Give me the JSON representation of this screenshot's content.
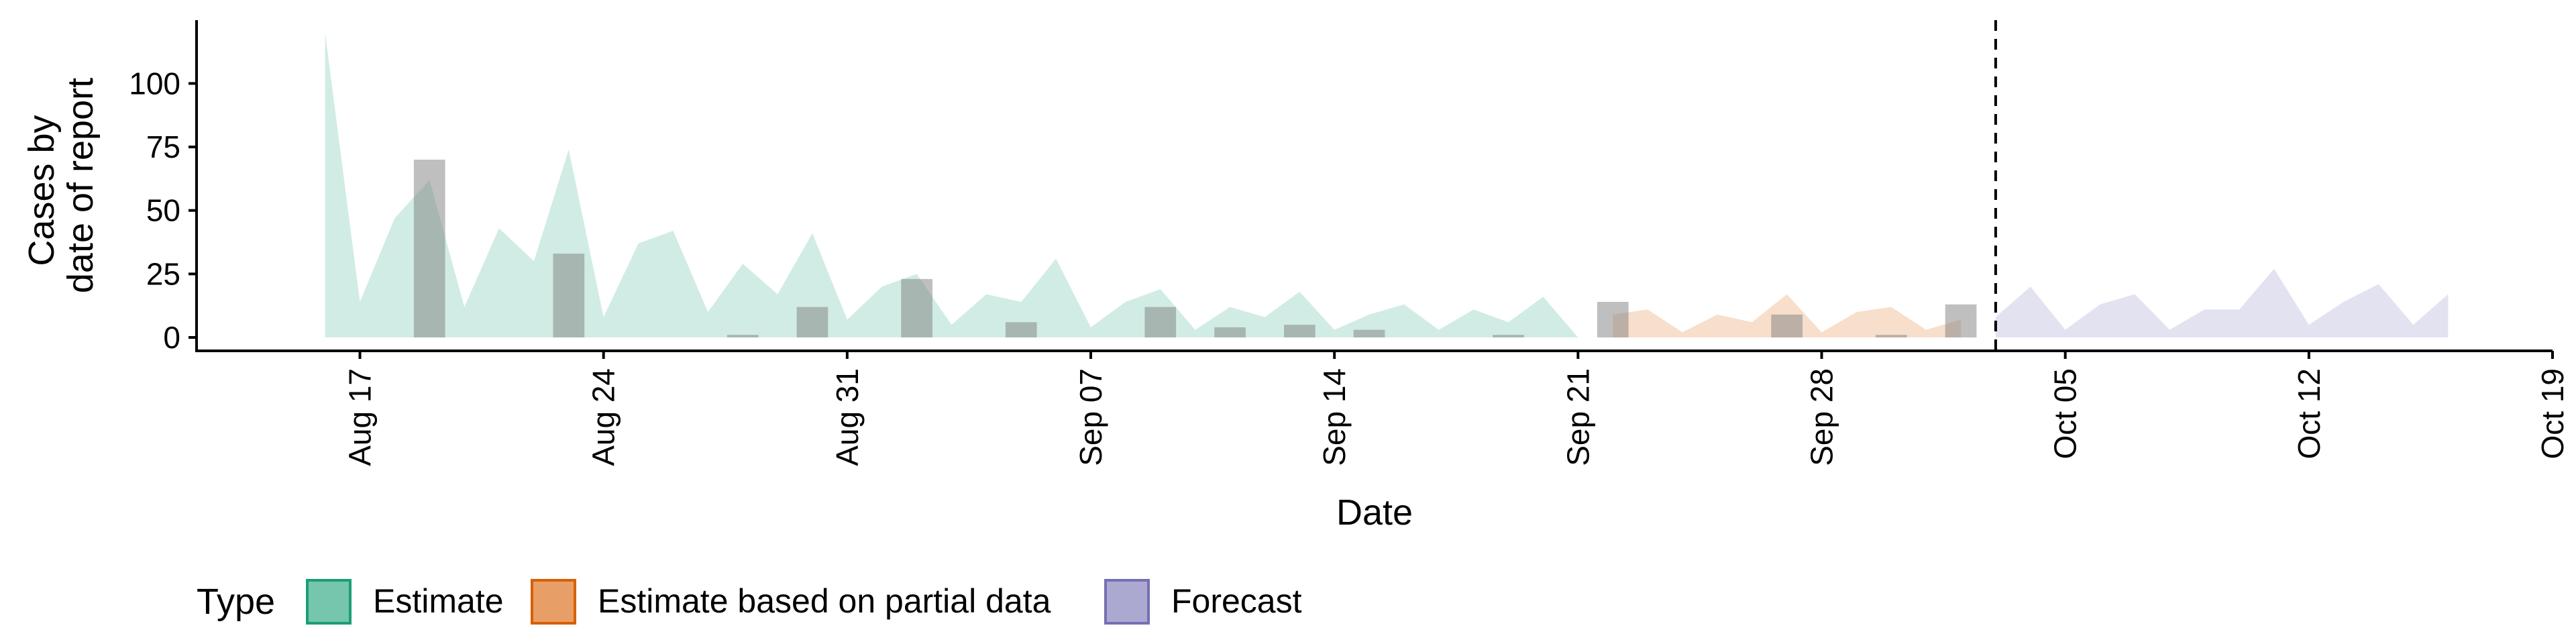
{
  "chart_data": {
    "type": "area",
    "xlabel": "Date",
    "ylabel": [
      "Cases by",
      "date of report"
    ],
    "ylim": [
      0,
      120
    ],
    "xlim": [
      "2020-08-13",
      "2020-10-19"
    ],
    "y_ticks": [
      0,
      25,
      50,
      75,
      100
    ],
    "x_ticks": [
      {
        "date": "2020-08-17",
        "label": "Aug 17"
      },
      {
        "date": "2020-08-24",
        "label": "Aug 24"
      },
      {
        "date": "2020-08-31",
        "label": "Aug 31"
      },
      {
        "date": "2020-09-07",
        "label": "Sep 07"
      },
      {
        "date": "2020-09-14",
        "label": "Sep 14"
      },
      {
        "date": "2020-09-21",
        "label": "Sep 21"
      },
      {
        "date": "2020-09-28",
        "label": "Sep 28"
      },
      {
        "date": "2020-10-05",
        "label": "Oct 05"
      },
      {
        "date": "2020-10-12",
        "label": "Oct 12"
      },
      {
        "date": "2020-10-19",
        "label": "Oct 19"
      }
    ],
    "grid": false,
    "legend_position": "bottom-left",
    "legend_title": "Type",
    "reference_line": {
      "date": "2020-10-03",
      "style": "dashed",
      "color": "#000000"
    },
    "series": [
      {
        "name": "Estimate",
        "fill": "#1b9e77",
        "border": "#1b9e77",
        "start": "2020-08-16",
        "values": [
          120,
          14,
          47,
          62,
          12,
          43,
          30,
          74,
          8,
          37,
          42,
          10,
          29,
          17,
          41,
          7,
          20,
          25,
          5,
          17,
          14,
          31,
          4,
          14,
          19,
          3,
          12,
          8,
          18,
          3,
          9,
          13,
          3,
          11,
          6,
          16,
          0
        ]
      },
      {
        "name": "Estimate based on partial data",
        "fill": "#d95f02",
        "border": "#d95f02",
        "start": "2020-09-22",
        "values": [
          9,
          11,
          2,
          9,
          6,
          17,
          2,
          10,
          12,
          3,
          7
        ]
      },
      {
        "name": "Forecast",
        "fill": "#7570b3",
        "border": "#7570b3",
        "start": "2020-10-03",
        "values": [
          8,
          20,
          3,
          13,
          17,
          3,
          11,
          11,
          27,
          5,
          14,
          21,
          5,
          17
        ]
      }
    ],
    "reported_cases": {
      "color": "#808080",
      "points": [
        {
          "date": "2020-08-19",
          "value": 70
        },
        {
          "date": "2020-08-23",
          "value": 33
        },
        {
          "date": "2020-08-28",
          "value": 1
        },
        {
          "date": "2020-08-30",
          "value": 12
        },
        {
          "date": "2020-09-02",
          "value": 23
        },
        {
          "date": "2020-09-05",
          "value": 6
        },
        {
          "date": "2020-09-09",
          "value": 12
        },
        {
          "date": "2020-09-11",
          "value": 4
        },
        {
          "date": "2020-09-13",
          "value": 5
        },
        {
          "date": "2020-09-15",
          "value": 3
        },
        {
          "date": "2020-09-19",
          "value": 1
        },
        {
          "date": "2020-09-22",
          "value": 14
        },
        {
          "date": "2020-09-27",
          "value": 9
        },
        {
          "date": "2020-09-30",
          "value": 1
        },
        {
          "date": "2020-10-02",
          "value": 13
        }
      ]
    }
  }
}
